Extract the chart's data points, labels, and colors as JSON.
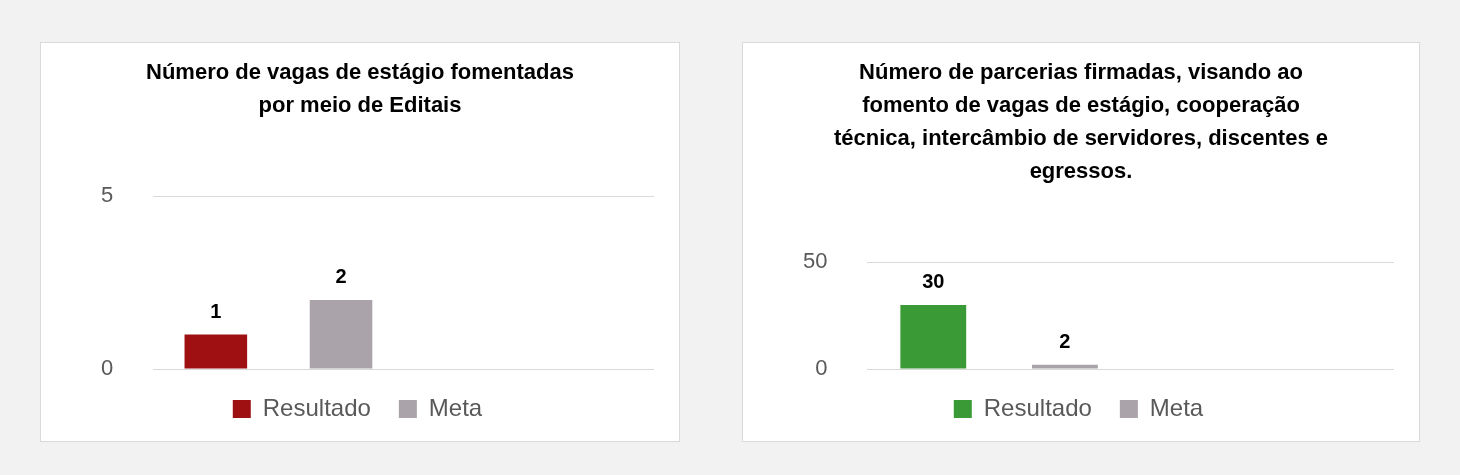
{
  "chart_data": [
    {
      "type": "bar",
      "title": "Número de vagas de estágio fomentadas por meio de Editais",
      "categories": [
        null,
        null
      ],
      "series": [
        {
          "name": "Resultado",
          "color": "#9e1012",
          "values": [
            1,
            null
          ]
        },
        {
          "name": "Meta",
          "color": "#aaa3aa",
          "values": [
            2,
            null
          ]
        }
      ],
      "ylim": [
        0,
        5
      ],
      "yticks": [
        0,
        5
      ],
      "grid": "y",
      "legend": "bottom",
      "data_labels": true,
      "tick_labels": "y"
    },
    {
      "type": "bar",
      "title": "Número de parcerias firmadas, visando ao fomento de vagas de estágio, cooperação técnica, intercâmbio de servidores, discentes e egressos.",
      "categories": [
        null,
        null
      ],
      "series": [
        {
          "name": "Resultado",
          "color": "#3a9a35",
          "values": [
            30,
            null
          ]
        },
        {
          "name": "Meta",
          "color": "#aaa3aa",
          "values": [
            2,
            null
          ]
        }
      ],
      "ylim": [
        0,
        50
      ],
      "yticks": [
        0,
        50
      ],
      "grid": "y",
      "legend": "bottom",
      "data_labels": true,
      "tick_labels": "y"
    }
  ]
}
